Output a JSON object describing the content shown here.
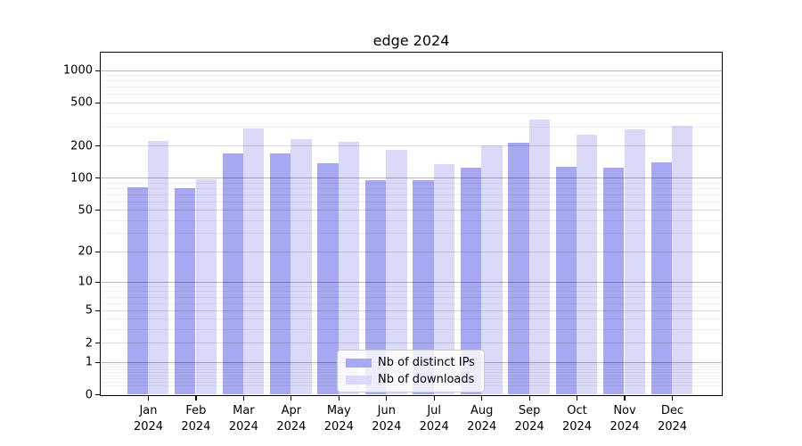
{
  "chart_data": {
    "type": "bar",
    "title": "edge 2024",
    "categories": [
      "Jan",
      "Feb",
      "Mar",
      "Apr",
      "May",
      "Jun",
      "Jul",
      "Aug",
      "Sep",
      "Oct",
      "Nov",
      "Dec"
    ],
    "x_year": "2024",
    "series": [
      {
        "name": "Nb of distinct IPs",
        "color": "#a7a7f2",
        "values": [
          82,
          80,
          170,
          168,
          136,
          94,
          94,
          124,
          212,
          127,
          125,
          139
        ]
      },
      {
        "name": "Nb of downloads",
        "color": "#d9d9f8",
        "values": [
          220,
          97,
          285,
          230,
          215,
          183,
          133,
          199,
          347,
          252,
          282,
          306
        ]
      }
    ],
    "yscale": "log1p",
    "ylim": [
      0,
      1450
    ],
    "y_major_ticks": [
      0,
      1,
      2,
      5,
      10,
      20,
      50,
      100,
      200,
      500,
      1000
    ],
    "y_minor_ticks": [
      0.2,
      0.3,
      0.4,
      0.5,
      0.6,
      0.7,
      0.8,
      0.9,
      3,
      4,
      6,
      7,
      8,
      9,
      30,
      40,
      60,
      70,
      80,
      90,
      300,
      400,
      600,
      700,
      800,
      900
    ],
    "grid": true,
    "legend_position": "lower center"
  }
}
